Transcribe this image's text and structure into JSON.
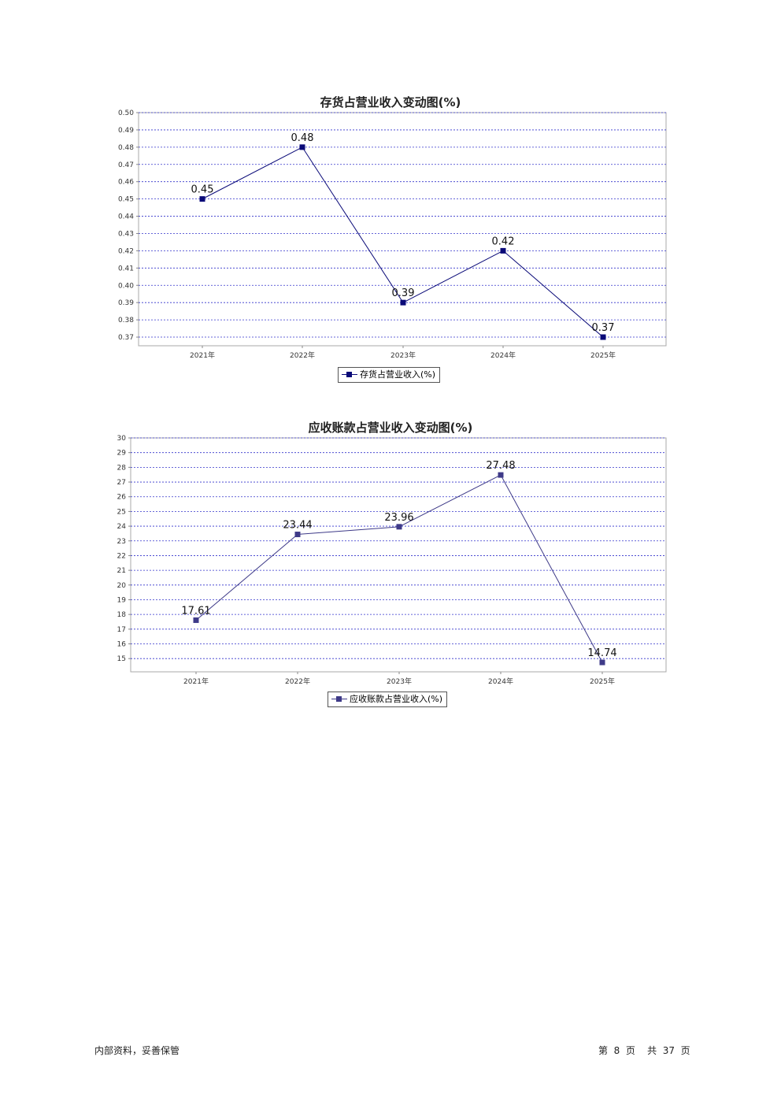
{
  "chart_data": [
    {
      "type": "line",
      "title": "存货占营业收入变动图(%)",
      "categories": [
        "2021年",
        "2022年",
        "2023年",
        "2024年",
        "2025年"
      ],
      "series": [
        {
          "name": "存货占营业收入(%)",
          "values": [
            0.45,
            0.48,
            0.39,
            0.42,
            0.37
          ]
        }
      ],
      "data_labels": [
        "0.45",
        "0.48",
        "0.39",
        "0.42",
        "0.37"
      ],
      "yticks": [
        "0.37",
        "0.38",
        "0.39",
        "0.40",
        "0.41",
        "0.42",
        "0.43",
        "0.44",
        "0.45",
        "0.46",
        "0.47",
        "0.48",
        "0.49",
        "0.50"
      ],
      "ylim": [
        0.365,
        0.5
      ],
      "grid": true,
      "legend": "bottom-center",
      "color": "#0a0a78"
    },
    {
      "type": "line",
      "title": "应收账款占营业收入变动图(%)",
      "categories": [
        "2021年",
        "2022年",
        "2023年",
        "2024年",
        "2025年"
      ],
      "series": [
        {
          "name": "应收账款占营业收入(%)",
          "values": [
            17.61,
            23.44,
            23.96,
            27.48,
            14.74
          ]
        }
      ],
      "data_labels": [
        "17.61",
        "23.44",
        "23.96",
        "27.48",
        "14.74"
      ],
      "yticks": [
        "15",
        "16",
        "17",
        "18",
        "19",
        "20",
        "21",
        "22",
        "23",
        "24",
        "25",
        "26",
        "27",
        "28",
        "29",
        "30"
      ],
      "ylim": [
        14.1,
        30
      ],
      "grid": true,
      "legend": "bottom-center",
      "color": "#3e3a88"
    }
  ],
  "footer": {
    "left": "内部资料，妥善保管",
    "right": "第  8  页    共  37  页"
  }
}
